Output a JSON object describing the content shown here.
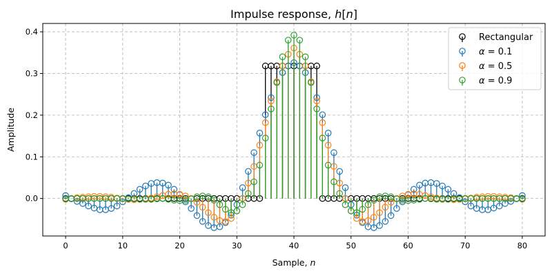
{
  "chart_data": {
    "type": "stem",
    "title": "Impulse response, h[n]",
    "title_parts": {
      "prefix": "Impulse response, ",
      "var": "h",
      "open": "[",
      "idx": "n",
      "close": "]"
    },
    "xlabel": "Sample, n",
    "xlabel_parts": {
      "prefix": "Sample, ",
      "var": "n"
    },
    "ylabel": "Amplitude",
    "xlim": [
      -4,
      84
    ],
    "ylim": [
      -0.09,
      0.42
    ],
    "xticks": [
      0,
      10,
      20,
      30,
      40,
      50,
      60,
      70,
      80
    ],
    "yticks": [
      0.0,
      0.1,
      0.2,
      0.3,
      0.4
    ],
    "ytick_labels": [
      "0.0",
      "0.1",
      "0.2",
      "0.3",
      "0.4"
    ],
    "grid": true,
    "legend_position": "top-right",
    "n_start": 0,
    "series": [
      {
        "name": "Rectangular",
        "label_parts": {
          "text": "Rectangular"
        },
        "color": "#000000",
        "values": [
          0,
          0,
          0,
          0,
          0,
          0,
          0,
          0,
          0,
          0,
          0,
          0,
          0,
          0,
          0,
          0,
          0,
          0,
          0,
          0,
          0,
          0,
          0,
          0,
          0,
          0,
          0,
          0,
          0,
          0,
          0,
          0,
          0,
          0,
          0,
          0.318,
          0.318,
          0.318,
          0.318,
          0.318,
          0.318,
          0.318,
          0.318,
          0.318,
          0.318,
          0,
          0,
          0,
          0,
          0,
          0,
          0,
          0,
          0,
          0,
          0,
          0,
          0,
          0,
          0,
          0,
          0,
          0,
          0,
          0,
          0,
          0,
          0,
          0,
          0,
          0,
          0,
          0,
          0,
          0,
          0,
          0,
          0,
          0,
          0,
          0
        ]
      },
      {
        "name": "α = 0.1",
        "label_parts": {
          "greek": "α",
          "rest": " = 0.1"
        },
        "color": "#1f77b4",
        "values": [
          0.007,
          -0.001,
          -0.007,
          -0.012,
          -0.018,
          -0.023,
          -0.027,
          -0.027,
          -0.024,
          -0.018,
          -0.008,
          0.002,
          0.012,
          0.022,
          0.03,
          0.036,
          0.038,
          0.037,
          0.032,
          0.022,
          0.009,
          -0.008,
          -0.024,
          -0.041,
          -0.055,
          -0.065,
          -0.07,
          -0.068,
          -0.058,
          -0.04,
          -0.015,
          0.026,
          0.065,
          0.11,
          0.157,
          0.201,
          0.242,
          0.28,
          0.302,
          0.318,
          0.326,
          0.318,
          0.302,
          0.28,
          0.242,
          0.201,
          0.157,
          0.11,
          0.065,
          0.026,
          -0.015,
          -0.04,
          -0.058,
          -0.068,
          -0.07,
          -0.065,
          -0.055,
          -0.041,
          -0.024,
          -0.008,
          0.009,
          0.022,
          0.032,
          0.037,
          0.038,
          0.036,
          0.03,
          0.022,
          0.012,
          0.002,
          -0.008,
          -0.018,
          -0.024,
          -0.027,
          -0.027,
          -0.023,
          -0.018,
          -0.012,
          -0.007,
          -0.001,
          0.007
        ]
      },
      {
        "name": "α = 0.5",
        "label_parts": {
          "greek": "α",
          "rest": " = 0.5"
        },
        "color": "#ff7f0e",
        "values": [
          -0.002,
          0.0,
          0.002,
          0.003,
          0.004,
          0.005,
          0.005,
          0.004,
          0.003,
          0.001,
          -0.001,
          -0.002,
          -0.003,
          -0.002,
          -0.001,
          0.001,
          0.004,
          0.007,
          0.01,
          0.011,
          0.01,
          0.006,
          0.0,
          -0.009,
          -0.021,
          -0.034,
          -0.045,
          -0.053,
          -0.055,
          -0.048,
          -0.03,
          0.0,
          0.037,
          0.077,
          0.128,
          0.182,
          0.234,
          0.28,
          0.318,
          0.346,
          0.361,
          0.346,
          0.318,
          0.28,
          0.234,
          0.182,
          0.128,
          0.077,
          0.037,
          0.0,
          -0.03,
          -0.048,
          -0.055,
          -0.053,
          -0.045,
          -0.034,
          -0.021,
          -0.009,
          0.0,
          0.006,
          0.01,
          0.011,
          0.01,
          0.007,
          0.004,
          0.001,
          -0.001,
          -0.002,
          -0.003,
          -0.002,
          -0.001,
          0.001,
          0.003,
          0.004,
          0.005,
          0.005,
          0.004,
          0.003,
          0.002,
          0.0,
          -0.002
        ]
      },
      {
        "name": "α = 0.9",
        "label_parts": {
          "greek": "α",
          "rest": " = 0.9"
        },
        "color": "#2ca02c",
        "values": [
          -0.001,
          0.0,
          0.0,
          0.0,
          0.0,
          0.0,
          0.0,
          0.0,
          0.0,
          0.0,
          0.0,
          -0.001,
          -0.001,
          -0.002,
          -0.002,
          -0.002,
          -0.001,
          0.0,
          -0.002,
          -0.004,
          -0.005,
          -0.004,
          -0.001,
          0.004,
          0.006,
          0.004,
          -0.004,
          -0.015,
          -0.026,
          -0.034,
          -0.03,
          -0.015,
          0.012,
          0.04,
          0.08,
          0.145,
          0.215,
          0.278,
          0.34,
          0.38,
          0.392,
          0.38,
          0.34,
          0.278,
          0.215,
          0.145,
          0.08,
          0.04,
          0.012,
          -0.015,
          -0.03,
          -0.034,
          -0.026,
          -0.015,
          -0.004,
          0.004,
          0.006,
          0.004,
          -0.001,
          -0.004,
          -0.005,
          -0.004,
          -0.002,
          0.0,
          -0.001,
          -0.002,
          -0.002,
          -0.002,
          -0.001,
          -0.001,
          0.0,
          0.0,
          0.0,
          0.0,
          0.0,
          0.0,
          0.0,
          0.0,
          0.0,
          0.0,
          -0.001
        ]
      }
    ]
  }
}
